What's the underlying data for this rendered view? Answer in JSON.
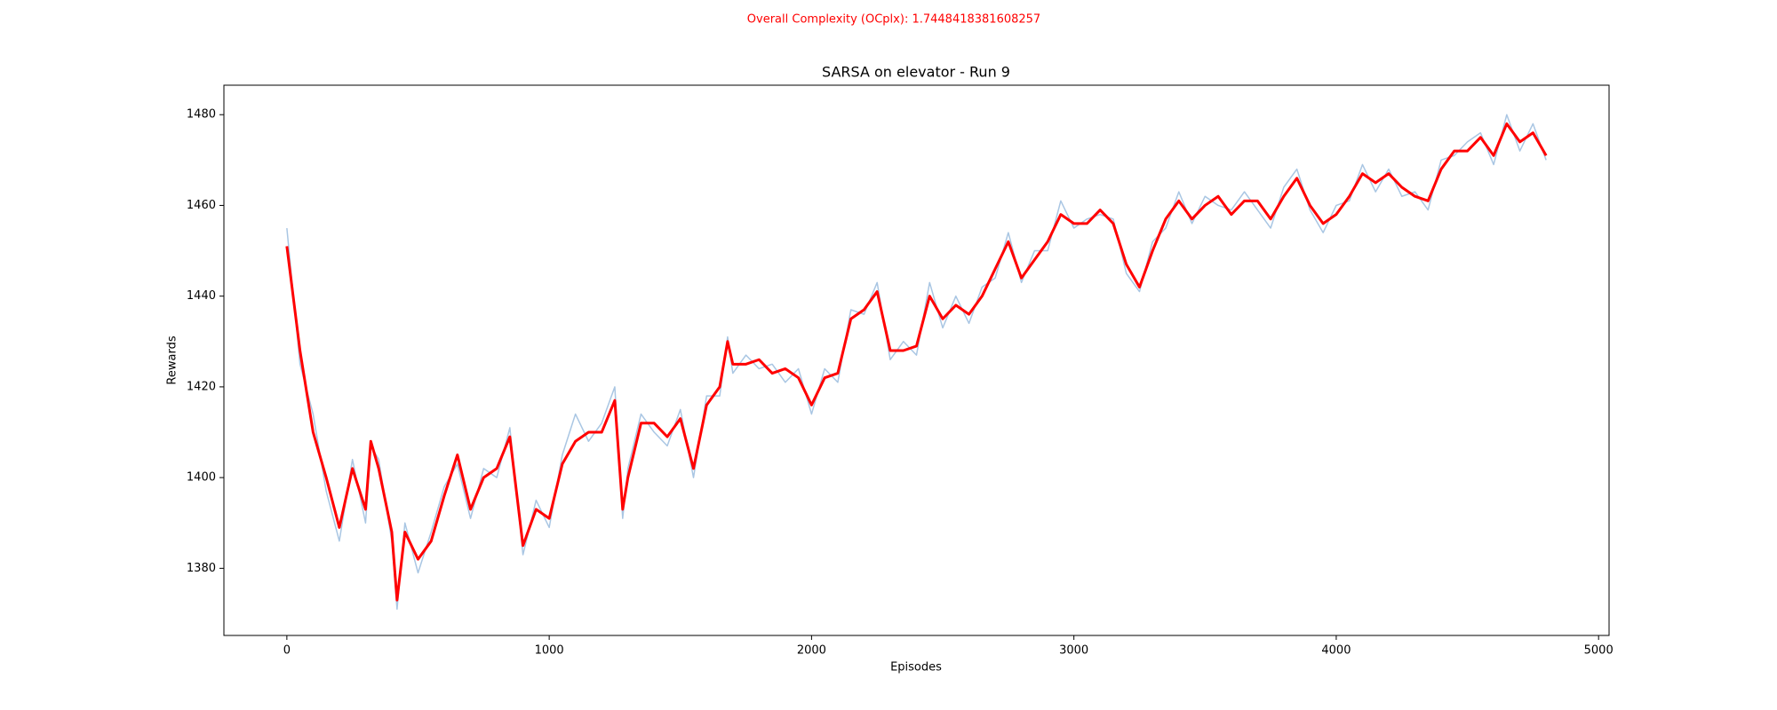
{
  "chart_data": {
    "type": "line",
    "header": "Overall Complexity (OCplx): 1.7448418381608257",
    "title": "SARSA on elevator - Run 9",
    "xlabel": "Episodes",
    "ylabel": "Rewards",
    "x": [
      0,
      50,
      100,
      150,
      200,
      250,
      300,
      320,
      350,
      400,
      420,
      450,
      500,
      550,
      600,
      650,
      700,
      750,
      800,
      850,
      900,
      950,
      1000,
      1050,
      1100,
      1150,
      1200,
      1250,
      1280,
      1300,
      1350,
      1400,
      1450,
      1500,
      1550,
      1600,
      1650,
      1680,
      1700,
      1750,
      1800,
      1850,
      1900,
      1950,
      2000,
      2050,
      2100,
      2150,
      2200,
      2250,
      2300,
      2350,
      2400,
      2450,
      2500,
      2550,
      2600,
      2650,
      2700,
      2750,
      2800,
      2850,
      2900,
      2950,
      3000,
      3050,
      3100,
      3150,
      3200,
      3250,
      3300,
      3350,
      3400,
      3450,
      3500,
      3550,
      3600,
      3650,
      3700,
      3750,
      3800,
      3850,
      3900,
      3950,
      4000,
      4050,
      4100,
      4150,
      4200,
      4250,
      4300,
      4350,
      4400,
      4450,
      4500,
      4550,
      4600,
      4650,
      4700,
      4750,
      4800
    ],
    "series": [
      {
        "color": "#a9c6e3",
        "width": 1.5,
        "values": [
          1455,
          1425,
          1414,
          1397,
          1386,
          1404,
          1390,
          1407,
          1404,
          1386,
          1371,
          1390,
          1379,
          1388,
          1398,
          1403,
          1391,
          1402,
          1400,
          1411,
          1383,
          1395,
          1389,
          1405,
          1414,
          1408,
          1412,
          1420,
          1391,
          1402,
          1414,
          1410,
          1407,
          1415,
          1400,
          1418,
          1418,
          1431,
          1423,
          1427,
          1424,
          1425,
          1421,
          1424,
          1414,
          1424,
          1421,
          1437,
          1436,
          1443,
          1426,
          1430,
          1427,
          1443,
          1433,
          1440,
          1434,
          1442,
          1444,
          1454,
          1443,
          1450,
          1450,
          1461,
          1455,
          1457,
          1458,
          1457,
          1445,
          1441,
          1452,
          1455,
          1463,
          1456,
          1462,
          1460,
          1459,
          1463,
          1459,
          1455,
          1464,
          1468,
          1459,
          1454,
          1460,
          1461,
          1469,
          1463,
          1468,
          1462,
          1463,
          1459,
          1470,
          1471,
          1474,
          1476,
          1469,
          1480,
          1472,
          1478,
          1470
        ]
      },
      {
        "color": "#ff0000",
        "width": 3,
        "values": [
          1451,
          1428,
          1410,
          1400,
          1389,
          1402,
          1393,
          1408,
          1402,
          1388,
          1373,
          1388,
          1382,
          1386,
          1396,
          1405,
          1393,
          1400,
          1402,
          1409,
          1385,
          1393,
          1391,
          1403,
          1408,
          1410,
          1410,
          1417,
          1393,
          1400,
          1412,
          1412,
          1409,
          1413,
          1402,
          1416,
          1420,
          1430,
          1425,
          1425,
          1426,
          1423,
          1424,
          1422,
          1416,
          1422,
          1423,
          1435,
          1437,
          1441,
          1428,
          1428,
          1429,
          1440,
          1435,
          1438,
          1436,
          1440,
          1446,
          1452,
          1444,
          1448,
          1452,
          1458,
          1456,
          1456,
          1459,
          1456,
          1447,
          1442,
          1450,
          1457,
          1461,
          1457,
          1460,
          1462,
          1458,
          1461,
          1461,
          1457,
          1462,
          1466,
          1460,
          1456,
          1458,
          1462,
          1467,
          1465,
          1467,
          1464,
          1462,
          1461,
          1468,
          1472,
          1472,
          1475,
          1471,
          1478,
          1474,
          1476,
          1471
        ]
      }
    ],
    "xlim": [
      -240,
      5040
    ],
    "ylim": [
      1365.2,
      1486.5
    ],
    "xticks": [
      0,
      1000,
      2000,
      3000,
      4000,
      5000
    ],
    "yticks": [
      1380,
      1400,
      1420,
      1440,
      1460,
      1480
    ],
    "header_color": "#ff0000"
  }
}
